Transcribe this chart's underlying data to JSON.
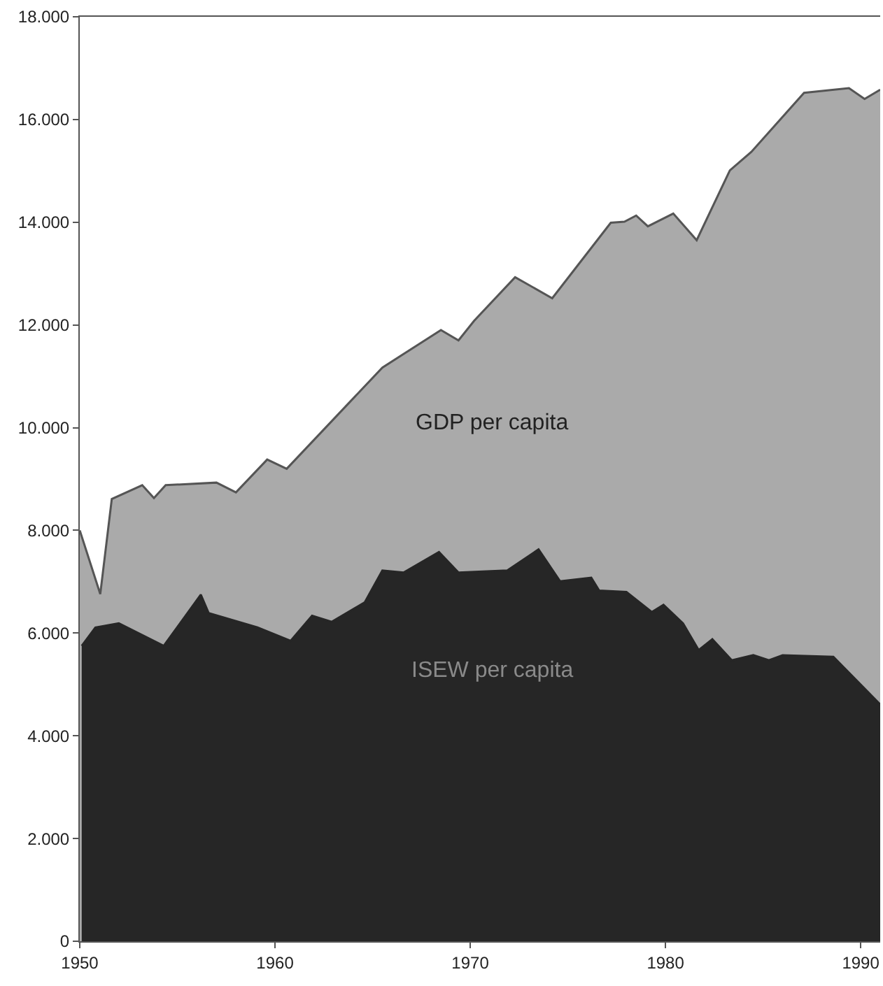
{
  "chart_data": {
    "type": "area",
    "series": [
      {
        "name": "GDP per capita",
        "color": "#aaaaaa",
        "x": [
          1950.0,
          1951.05,
          1951.64,
          1953.2,
          1953.8,
          1954.4,
          1957.0,
          1958.0,
          1959.6,
          1960.6,
          1965.5,
          1968.5,
          1969.4,
          1970.2,
          1972.3,
          1974.2,
          1977.2,
          1977.9,
          1978.5,
          1979.1,
          1980.4,
          1981.6,
          1983.3,
          1984.4,
          1987.1,
          1989.4,
          1990.2,
          1991.0
        ],
        "values": [
          8000,
          6760,
          8610,
          8880,
          8630,
          8880,
          8930,
          8740,
          9380,
          9200,
          11170,
          11900,
          11700,
          12080,
          12930,
          12520,
          13990,
          14010,
          14130,
          13920,
          14170,
          13650,
          15010,
          15370,
          16520,
          16610,
          16400,
          16580
        ]
      },
      {
        "name": "ISEW per capita",
        "color": "#262626",
        "x": [
          1950.1,
          1950.8,
          1952.0,
          1954.3,
          1956.2,
          1956.6,
          1959.1,
          1960.8,
          1961.9,
          1962.9,
          1964.6,
          1965.5,
          1966.6,
          1968.4,
          1969.4,
          1971.9,
          1973.5,
          1974.6,
          1976.2,
          1976.6,
          1978.0,
          1979.3,
          1979.9,
          1980.9,
          1981.7,
          1982.4,
          1983.4,
          1984.5,
          1985.3,
          1986.0,
          1988.6,
          1991.0
        ],
        "values": [
          5750,
          6110,
          6190,
          5750,
          6750,
          6390,
          6110,
          5850,
          6340,
          6220,
          6600,
          7220,
          7180,
          7580,
          7180,
          7220,
          7630,
          7010,
          7080,
          6830,
          6800,
          6410,
          6550,
          6190,
          5670,
          5880,
          5470,
          5570,
          5470,
          5570,
          5540,
          4610
        ]
      }
    ],
    "xlim": [
      1950,
      1991
    ],
    "xticks": [
      1950,
      1960,
      1970,
      1980,
      1990
    ],
    "ylim": [
      0,
      18000
    ],
    "yticks": [
      0,
      {
        "value": 2000,
        "label": "2.000"
      },
      {
        "value": 4000,
        "label": "4.000"
      },
      {
        "value": 6000,
        "label": "6.000"
      },
      {
        "value": 8000,
        "label": "8.000"
      },
      {
        "value": 10000,
        "label": "10.000"
      },
      {
        "value": 12000,
        "label": "12.000"
      },
      {
        "value": 14000,
        "label": "14.000"
      },
      {
        "value": 16000,
        "label": "16.000"
      },
      {
        "value": 18000,
        "label": "18.000"
      }
    ],
    "legend": false
  }
}
